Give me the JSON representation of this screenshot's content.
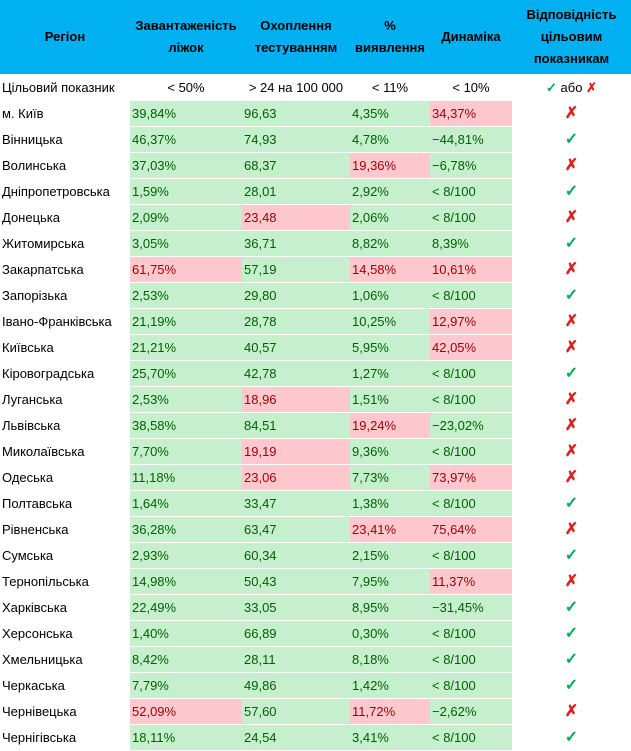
{
  "headers": [
    "Регіон",
    "Завантаженість ліжок",
    "Охоплення тестуванням",
    "% виявлення",
    "Динаміка",
    "Відповідність цільовим показникам"
  ],
  "target": {
    "label": "Цільовий показник",
    "beds": "< 50%",
    "testing": "> 24 на 100 000",
    "detection": "< 11%",
    "dynamics": "< 10%",
    "check_symbol": "✓",
    "or_word": "або",
    "cross_symbol": "✗"
  },
  "colors": {
    "header": "#00b0f0",
    "good_fill": "#c6efce",
    "bad_fill": "#ffc7ce",
    "check": "#00b050",
    "cross": "#e02020"
  },
  "rows": [
    {
      "region": "м. Київ",
      "beds": "39,84%",
      "beds_ok": true,
      "testing": "96,63",
      "testing_ok": true,
      "detection": "4,35%",
      "detection_ok": true,
      "dynamics": "34,37%",
      "dynamics_ok": false,
      "mark": "✗",
      "mark_ok": false
    },
    {
      "region": "Вінницька",
      "beds": "46,37%",
      "beds_ok": true,
      "testing": "74,93",
      "testing_ok": true,
      "detection": "4,78%",
      "detection_ok": true,
      "dynamics": "−44,81%",
      "dynamics_ok": true,
      "mark": "✓",
      "mark_ok": true
    },
    {
      "region": "Волинська",
      "beds": "37,03%",
      "beds_ok": true,
      "testing": "68,37",
      "testing_ok": true,
      "detection": "19,36%",
      "detection_ok": false,
      "dynamics": "−6,78%",
      "dynamics_ok": true,
      "mark": "✗",
      "mark_ok": false
    },
    {
      "region": "Дніпропетровська",
      "beds": "1,59%",
      "beds_ok": true,
      "testing": "28,01",
      "testing_ok": true,
      "detection": "2,92%",
      "detection_ok": true,
      "dynamics": "< 8/100",
      "dynamics_ok": true,
      "mark": "✓",
      "mark_ok": true
    },
    {
      "region": "Донецька",
      "beds": "2,09%",
      "beds_ok": true,
      "testing": "23,48",
      "testing_ok": false,
      "detection": "2,06%",
      "detection_ok": true,
      "dynamics": "< 8/100",
      "dynamics_ok": true,
      "mark": "✗",
      "mark_ok": false
    },
    {
      "region": "Житомирська",
      "beds": "3,05%",
      "beds_ok": true,
      "testing": "36,71",
      "testing_ok": true,
      "detection": "8,82%",
      "detection_ok": true,
      "dynamics": "8,39%",
      "dynamics_ok": true,
      "mark": "✓",
      "mark_ok": true
    },
    {
      "region": "Закарпатська",
      "beds": "61,75%",
      "beds_ok": false,
      "testing": "57,19",
      "testing_ok": true,
      "detection": "14,58%",
      "detection_ok": false,
      "dynamics": "10,61%",
      "dynamics_ok": false,
      "mark": "✗",
      "mark_ok": false
    },
    {
      "region": "Запорізька",
      "beds": "2,53%",
      "beds_ok": true,
      "testing": "29,80",
      "testing_ok": true,
      "detection": "1,06%",
      "detection_ok": true,
      "dynamics": "< 8/100",
      "dynamics_ok": true,
      "mark": "✓",
      "mark_ok": true
    },
    {
      "region": "Івано-Франківська",
      "beds": "21,19%",
      "beds_ok": true,
      "testing": "28,78",
      "testing_ok": true,
      "detection": "10,25%",
      "detection_ok": true,
      "dynamics": "12,97%",
      "dynamics_ok": false,
      "mark": "✗",
      "mark_ok": false
    },
    {
      "region": "Київська",
      "beds": "21,21%",
      "beds_ok": true,
      "testing": "40,57",
      "testing_ok": true,
      "detection": "5,95%",
      "detection_ok": true,
      "dynamics": "42,05%",
      "dynamics_ok": false,
      "mark": "✗",
      "mark_ok": false
    },
    {
      "region": "Кіровоградська",
      "beds": "25,70%",
      "beds_ok": true,
      "testing": "42,78",
      "testing_ok": true,
      "detection": "1,27%",
      "detection_ok": true,
      "dynamics": "< 8/100",
      "dynamics_ok": true,
      "mark": "✓",
      "mark_ok": true
    },
    {
      "region": "Луганська",
      "beds": "2,53%",
      "beds_ok": true,
      "testing": "18,96",
      "testing_ok": false,
      "detection": "1,51%",
      "detection_ok": true,
      "dynamics": "< 8/100",
      "dynamics_ok": true,
      "mark": "✗",
      "mark_ok": false
    },
    {
      "region": "Львівська",
      "beds": "38,58%",
      "beds_ok": true,
      "testing": "84,51",
      "testing_ok": true,
      "detection": "19,24%",
      "detection_ok": false,
      "dynamics": "−23,02%",
      "dynamics_ok": true,
      "mark": "✗",
      "mark_ok": false
    },
    {
      "region": "Миколаївська",
      "beds": "7,70%",
      "beds_ok": true,
      "testing": "19,19",
      "testing_ok": false,
      "detection": "9,36%",
      "detection_ok": true,
      "dynamics": "< 8/100",
      "dynamics_ok": true,
      "mark": "✗",
      "mark_ok": false
    },
    {
      "region": "Одеська",
      "beds": "11,18%",
      "beds_ok": true,
      "testing": "23,06",
      "testing_ok": false,
      "detection": "7,73%",
      "detection_ok": true,
      "dynamics": "73,97%",
      "dynamics_ok": false,
      "mark": "✗",
      "mark_ok": false
    },
    {
      "region": "Полтавська",
      "beds": "1,64%",
      "beds_ok": true,
      "testing": "33,47",
      "testing_ok": true,
      "detection": "1,38%",
      "detection_ok": true,
      "dynamics": "< 8/100",
      "dynamics_ok": true,
      "mark": "✓",
      "mark_ok": true
    },
    {
      "region": "Рівненська",
      "beds": "36,28%",
      "beds_ok": true,
      "testing": "63,47",
      "testing_ok": true,
      "detection": "23,41%",
      "detection_ok": false,
      "dynamics": "75,64%",
      "dynamics_ok": false,
      "mark": "✗",
      "mark_ok": false
    },
    {
      "region": "Сумська",
      "beds": "2,93%",
      "beds_ok": true,
      "testing": "60,34",
      "testing_ok": true,
      "detection": "2,15%",
      "detection_ok": true,
      "dynamics": "< 8/100",
      "dynamics_ok": true,
      "mark": "✓",
      "mark_ok": true
    },
    {
      "region": "Тернопільська",
      "beds": "14,98%",
      "beds_ok": true,
      "testing": "50,43",
      "testing_ok": true,
      "detection": "7,95%",
      "detection_ok": true,
      "dynamics": "11,37%",
      "dynamics_ok": false,
      "mark": "✗",
      "mark_ok": false
    },
    {
      "region": "Харківська",
      "beds": "22,49%",
      "beds_ok": true,
      "testing": "33,05",
      "testing_ok": true,
      "detection": "8,95%",
      "detection_ok": true,
      "dynamics": "−31,45%",
      "dynamics_ok": true,
      "mark": "✓",
      "mark_ok": true
    },
    {
      "region": "Херсонська",
      "beds": "1,40%",
      "beds_ok": true,
      "testing": "66,89",
      "testing_ok": true,
      "detection": "0,30%",
      "detection_ok": true,
      "dynamics": "< 8/100",
      "dynamics_ok": true,
      "mark": "✓",
      "mark_ok": true
    },
    {
      "region": "Хмельницька",
      "beds": "8,42%",
      "beds_ok": true,
      "testing": "28,11",
      "testing_ok": true,
      "detection": "8,18%",
      "detection_ok": true,
      "dynamics": "< 8/100",
      "dynamics_ok": true,
      "mark": "✓",
      "mark_ok": true
    },
    {
      "region": "Черкаська",
      "beds": "7,79%",
      "beds_ok": true,
      "testing": "49,86",
      "testing_ok": true,
      "detection": "1,42%",
      "detection_ok": true,
      "dynamics": "< 8/100",
      "dynamics_ok": true,
      "mark": "✓",
      "mark_ok": true
    },
    {
      "region": "Чернівецька",
      "beds": "52,09%",
      "beds_ok": false,
      "testing": "57,60",
      "testing_ok": true,
      "detection": "11,72%",
      "detection_ok": false,
      "dynamics": "−2,62%",
      "dynamics_ok": true,
      "mark": "✗",
      "mark_ok": false
    },
    {
      "region": "Чернігівська",
      "beds": "18,11%",
      "beds_ok": true,
      "testing": "24,54",
      "testing_ok": true,
      "detection": "3,41%",
      "detection_ok": true,
      "dynamics": "< 8/100",
      "dynamics_ok": true,
      "mark": "✓",
      "mark_ok": true
    }
  ]
}
